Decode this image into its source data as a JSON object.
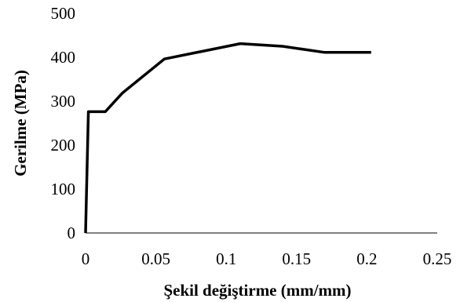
{
  "chart_data": {
    "type": "line",
    "title": "",
    "xlabel": "Şekil değiştirme (mm/mm)",
    "ylabel": "Gerilme (MPa)",
    "xlim": [
      0,
      0.25
    ],
    "ylim": [
      0,
      500
    ],
    "x_ticks": [
      "0",
      "0.05",
      "0.1",
      "0.15",
      "0.2",
      "0.25"
    ],
    "y_ticks": [
      "0",
      "100",
      "200",
      "300",
      "400",
      "500"
    ],
    "grid": false,
    "legend": "none",
    "series": [
      {
        "color": "#000000",
        "x": [
          0,
          0.002,
          0.014,
          0.026,
          0.056,
          0.11,
          0.14,
          0.17,
          0.203
        ],
        "y": [
          0,
          276,
          276,
          318,
          396,
          431,
          425,
          411,
          411
        ]
      }
    ]
  }
}
